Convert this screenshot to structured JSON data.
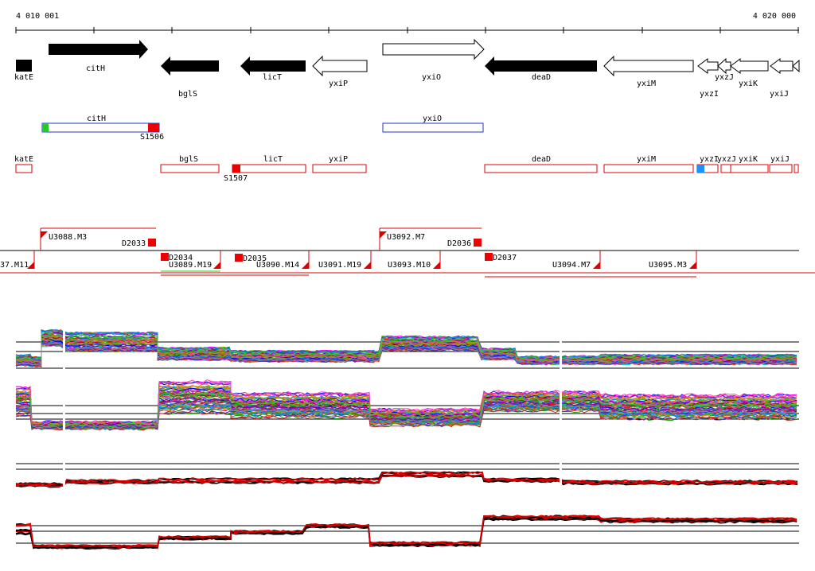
{
  "coords": {
    "start": "4 010 001",
    "end": "4 020 000"
  },
  "genes": [
    {
      "name": "katE",
      "filled": true
    },
    {
      "name": "citH",
      "filled": true
    },
    {
      "name": "bglS",
      "filled": true
    },
    {
      "name": "licT",
      "filled": true
    },
    {
      "name": "yxiP",
      "filled": false
    },
    {
      "name": "yxiO",
      "filled": false
    },
    {
      "name": "deaD",
      "filled": true
    },
    {
      "name": "yxiM",
      "filled": false
    },
    {
      "name": "yxzI",
      "filled": false
    },
    {
      "name": "yxzJ",
      "filled": false
    },
    {
      "name": "yxiK",
      "filled": false
    },
    {
      "name": "yxiJ",
      "filled": false
    }
  ],
  "operons_blue": [
    {
      "name": "citH",
      "end_label": "S1506"
    },
    {
      "name": "yxiO"
    }
  ],
  "operons_red": [
    {
      "name": "katE"
    },
    {
      "name": "bglS"
    },
    {
      "name": "licT",
      "start_label": "S1507"
    },
    {
      "name": "yxiP"
    },
    {
      "name": "deaD"
    },
    {
      "name": "yxiM"
    },
    {
      "name": "yxzI"
    },
    {
      "name": "yxzJ"
    },
    {
      "name": "yxiK"
    },
    {
      "name": "yxiJ"
    }
  ],
  "segments_top": [
    "U3088.M3",
    "D2033",
    "U3092.M7",
    "D2036"
  ],
  "segments_bottom": [
    "37.M11",
    "D2034",
    "U3089.M19",
    "D2035",
    "U3090.M14",
    "U3091.M19",
    "U3093.M10",
    "D2037",
    "U3094.M7",
    "U3095.M3"
  ],
  "colors": {
    "gene_fill": "#000000",
    "operon_blue": "#2233cc",
    "operon_red": "#dd0000",
    "marker_green": "#22cc22",
    "marker_blue": "#1e90ff"
  }
}
